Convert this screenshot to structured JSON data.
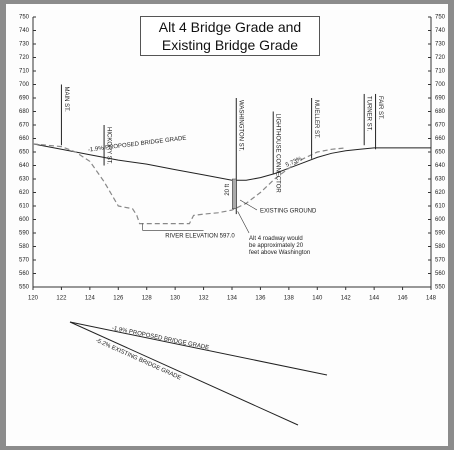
{
  "chart_data": {
    "type": "line",
    "title": "Alt 4 Bridge Grade and Existing Bridge Grade",
    "xlim": [
      120,
      148
    ],
    "xticks": [
      120,
      122,
      124,
      126,
      128,
      130,
      132,
      134,
      136,
      138,
      140,
      142,
      144,
      146,
      148
    ],
    "ylim": [
      550,
      750
    ],
    "yticks": [
      550,
      560,
      570,
      580,
      590,
      600,
      610,
      620,
      630,
      640,
      650,
      660,
      670,
      680,
      690,
      700,
      710,
      720,
      730,
      740,
      750
    ],
    "series": [
      {
        "name": "-1.9% PROPOSED BRIDGE GRADE",
        "color": "#222222",
        "dashed": false,
        "x": [
          120,
          122,
          124,
          126,
          128,
          130,
          132,
          134,
          135,
          136,
          137,
          138,
          139,
          140,
          141,
          142,
          143,
          144,
          146,
          148
        ],
        "values": [
          656,
          652,
          648,
          644,
          641,
          637,
          633,
          629,
          629,
          631,
          634,
          638,
          642,
          646,
          649,
          651,
          652,
          653,
          653,
          653
        ]
      },
      {
        "name": "EXISTING GROUND",
        "color": "#888888",
        "dashed": true,
        "x": [
          120,
          122,
          123,
          124,
          125,
          126,
          127,
          127.3,
          127.5,
          131,
          131.3,
          132,
          133,
          134,
          135,
          136,
          137,
          138,
          139,
          140,
          141,
          142
        ],
        "values": [
          656,
          654,
          650,
          643,
          628,
          610,
          608,
          603,
          597,
          597,
          603,
          604,
          605,
          607,
          612,
          620,
          630,
          638,
          645,
          650,
          652,
          653
        ]
      }
    ],
    "streets": [
      {
        "label": "MAIN ST.",
        "x": 122
      },
      {
        "label": "HICKORY ST.",
        "x": 125
      },
      {
        "label": "WASHINGTON ST.",
        "x": 134.3
      },
      {
        "label": "LIGHTHOUSE CONNECTOR",
        "x": 136.9
      },
      {
        "label": "MUELLER ST.",
        "x": 139.6
      },
      {
        "label": "TURNER ST.",
        "x": 143.3
      },
      {
        "label": "FAIR ST.",
        "x": 144.1
      }
    ],
    "annotations": {
      "grade_change": "5.73%",
      "height": "20 ft",
      "river": "RIVER ELEVATION 597.0",
      "note": [
        "Alt 4 roadway would",
        "be approximately 20",
        "feet above Washington"
      ]
    }
  },
  "lower_diagram": {
    "proposed": "-1.9% PROPOSED BRIDGE GRADE",
    "existing": "-5.2% EXISTING BRIDGE GRADE"
  }
}
